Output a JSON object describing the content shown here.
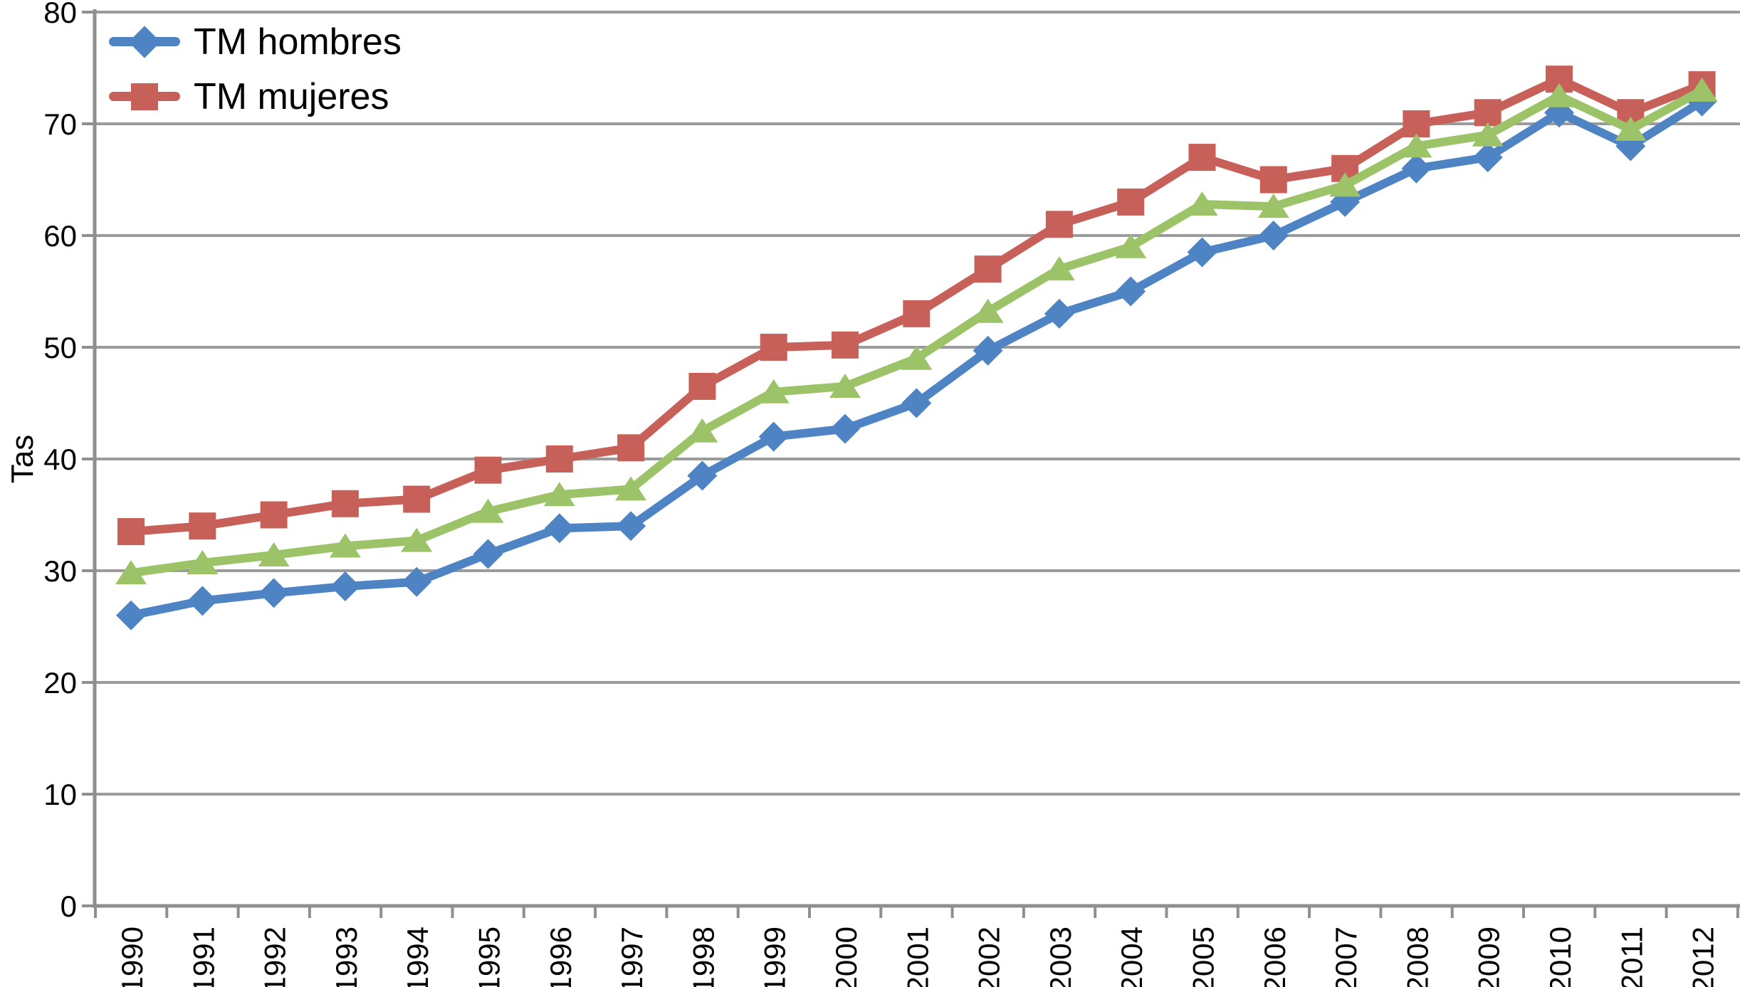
{
  "chart_data": {
    "type": "line",
    "title": "",
    "xlabel": "",
    "ylabel": "Tas",
    "ylim": [
      0,
      80
    ],
    "yticks": [
      0,
      10,
      20,
      30,
      40,
      50,
      60,
      70,
      80
    ],
    "grid": "horizontal",
    "legend_position": "top-left-inside",
    "categories": [
      "1990",
      "1991",
      "1992",
      "1993",
      "1994",
      "1995",
      "1996",
      "1997",
      "1998",
      "1999",
      "2000",
      "2001",
      "2002",
      "2003",
      "2004",
      "2005",
      "2006",
      "2007",
      "2008",
      "2009",
      "2010",
      "2011",
      "2012"
    ],
    "series": [
      {
        "name": "TM hombres",
        "marker": "diamond",
        "color": "#4f84c4",
        "values": [
          26,
          27.3,
          28,
          28.6,
          29,
          31.5,
          33.8,
          34,
          38.5,
          42,
          42.7,
          45,
          49.7,
          53,
          55,
          58.5,
          60,
          63,
          66,
          67,
          71,
          68,
          72
        ]
      },
      {
        "name": "TM mujeres",
        "marker": "square",
        "color": "#c8605a",
        "values": [
          33.5,
          34,
          35,
          36,
          36.4,
          39,
          40,
          41,
          46.5,
          50,
          50.2,
          53,
          57,
          61,
          63,
          67,
          65,
          66,
          70,
          71,
          74,
          71,
          73.5
        ]
      },
      {
        "name": "",
        "marker": "triangle",
        "color": "#9cc367",
        "values": [
          29.8,
          30.7,
          31.4,
          32.2,
          32.7,
          35.3,
          36.8,
          37.3,
          42.5,
          46,
          46.5,
          49,
          53.2,
          57,
          59,
          62.8,
          62.6,
          64.5,
          68,
          69,
          72.5,
          69.5,
          73
        ]
      }
    ]
  },
  "colors": {
    "grid": "#9b9b9b",
    "axis": "#8f8f8f",
    "text": "#000000",
    "background": "#ffffff"
  }
}
